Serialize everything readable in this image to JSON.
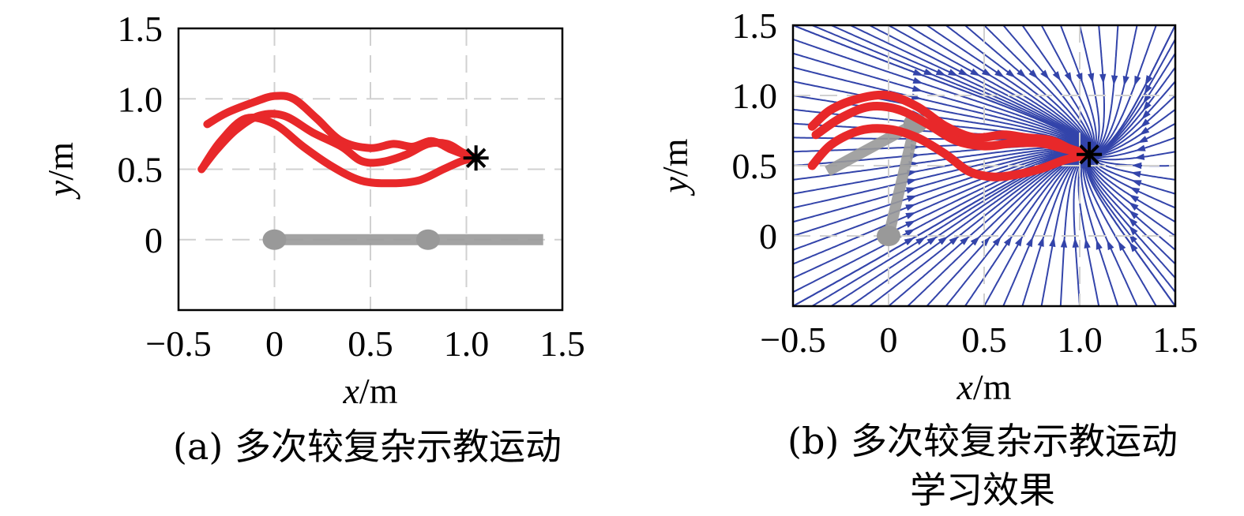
{
  "chart_data": [
    {
      "type": "line",
      "caption": "(a) 多次较复杂示教运动",
      "xlabel_var": "x",
      "xlabel_unit": "/m",
      "ylabel_var": "y",
      "ylabel_unit": "/m",
      "xlim": [
        -0.5,
        1.5
      ],
      "ylim": [
        -0.5,
        1.5
      ],
      "x_ticks": [
        -0.5,
        0,
        0.5,
        1.0,
        1.5
      ],
      "x_tick_labels": [
        "−0.5",
        "0",
        "0.5",
        "1.0",
        "1.5"
      ],
      "y_ticks": [
        0,
        0.5,
        1.0,
        1.5
      ],
      "y_tick_labels": [
        "0",
        "0.5",
        "1.0",
        "1.5"
      ],
      "grid": true,
      "target": {
        "x": 1.05,
        "y": 0.58
      },
      "series": [
        {
          "x": [
            -0.35,
            -0.25,
            -0.1,
            0.0,
            0.1,
            0.22,
            0.35,
            0.5,
            0.62,
            0.72,
            0.82,
            0.92,
            1.0,
            1.05
          ],
          "y": [
            0.82,
            0.9,
            0.98,
            1.02,
            1.0,
            0.86,
            0.7,
            0.65,
            0.68,
            0.66,
            0.7,
            0.64,
            0.6,
            0.58
          ]
        },
        {
          "x": [
            -0.38,
            -0.3,
            -0.2,
            -0.08,
            0.05,
            0.2,
            0.35,
            0.45,
            0.55,
            0.68,
            0.8,
            0.9,
            0.98,
            1.05
          ],
          "y": [
            0.5,
            0.64,
            0.78,
            0.88,
            0.88,
            0.76,
            0.66,
            0.56,
            0.55,
            0.6,
            0.68,
            0.68,
            0.62,
            0.58
          ]
        },
        {
          "x": [
            -0.37,
            -0.28,
            -0.15,
            0.0,
            0.15,
            0.3,
            0.45,
            0.6,
            0.75,
            0.88,
            0.98,
            1.05
          ],
          "y": [
            0.52,
            0.7,
            0.86,
            0.82,
            0.66,
            0.52,
            0.42,
            0.4,
            0.42,
            0.5,
            0.56,
            0.58
          ]
        }
      ],
      "robot_arm": {
        "links_x": [
          0.0,
          0.8,
          1.4
        ],
        "links_y": [
          0.0,
          0.0,
          0.0
        ],
        "joints_x": [
          0.0,
          0.8
        ],
        "joints_y": [
          0.0,
          0.0
        ]
      }
    },
    {
      "type": "line",
      "caption_line1": "(b) 多次较复杂示教运动",
      "caption_line2": "学习效果",
      "xlabel_var": "x",
      "xlabel_unit": "/m",
      "ylabel_var": "y",
      "ylabel_unit": "/m",
      "xlim": [
        -0.5,
        1.5
      ],
      "ylim": [
        -0.5,
        1.5
      ],
      "x_ticks": [
        -0.5,
        0,
        0.5,
        1.0,
        1.5
      ],
      "x_tick_labels": [
        "−0.5",
        "0",
        "0.5",
        "1.0",
        "1.5"
      ],
      "y_ticks": [
        0,
        0.5,
        1.0,
        1.5
      ],
      "y_tick_labels": [
        "0",
        "0.5",
        "1.0",
        "1.5"
      ],
      "grid": true,
      "target": {
        "x": 1.05,
        "y": 0.58
      },
      "stream_field": true,
      "series": [
        {
          "x": [
            -0.4,
            -0.3,
            -0.15,
            0.0,
            0.15,
            0.3,
            0.45,
            0.6,
            0.72,
            0.85,
            0.95,
            1.05
          ],
          "y": [
            0.78,
            0.9,
            0.98,
            1.0,
            0.92,
            0.78,
            0.7,
            0.72,
            0.7,
            0.68,
            0.62,
            0.58
          ]
        },
        {
          "x": [
            -0.4,
            -0.3,
            -0.15,
            0.0,
            0.15,
            0.3,
            0.42,
            0.55,
            0.68,
            0.8,
            0.92,
            1.05
          ],
          "y": [
            0.5,
            0.65,
            0.75,
            0.76,
            0.7,
            0.58,
            0.46,
            0.42,
            0.44,
            0.48,
            0.54,
            0.58
          ]
        },
        {
          "x": [
            -0.38,
            -0.25,
            -0.1,
            0.05,
            0.2,
            0.35,
            0.5,
            0.65,
            0.8,
            0.92,
            1.05
          ],
          "y": [
            0.72,
            0.84,
            0.92,
            0.9,
            0.8,
            0.68,
            0.64,
            0.66,
            0.66,
            0.62,
            0.58
          ]
        }
      ],
      "robot_arm": {
        "links_x": [
          0.0,
          0.14,
          -0.32
        ],
        "links_y": [
          0.0,
          0.8,
          0.46
        ],
        "joints_x": [
          0.0,
          0.14
        ],
        "joints_y": [
          0.0,
          0.8
        ]
      }
    }
  ]
}
